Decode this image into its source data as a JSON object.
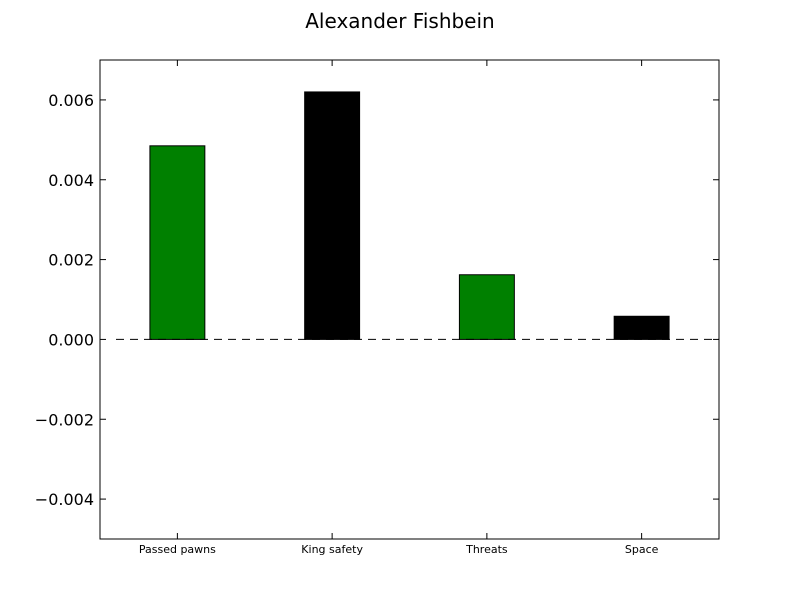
{
  "chart_data": {
    "type": "bar",
    "title": "Alexander Fishbein",
    "xlabel": "",
    "ylabel": "",
    "categories": [
      "Passed pawns",
      "King safety",
      "Threats",
      "Space"
    ],
    "values": [
      0.00485,
      0.0062,
      0.00162,
      0.00058
    ],
    "bar_colors": [
      "#008000",
      "#000000",
      "#008000",
      "#000000"
    ],
    "ylim": [
      -0.005,
      0.007
    ],
    "yticks": [
      -0.004,
      -0.002,
      0.0,
      0.002,
      0.004,
      0.006
    ],
    "ytick_labels": [
      "−0.004",
      "−0.002",
      "0.000",
      "0.002",
      "0.004",
      "0.006"
    ],
    "reference_line": {
      "y": 0,
      "style": "dashed",
      "color": "#000000"
    },
    "grid": false,
    "legend": "none"
  }
}
